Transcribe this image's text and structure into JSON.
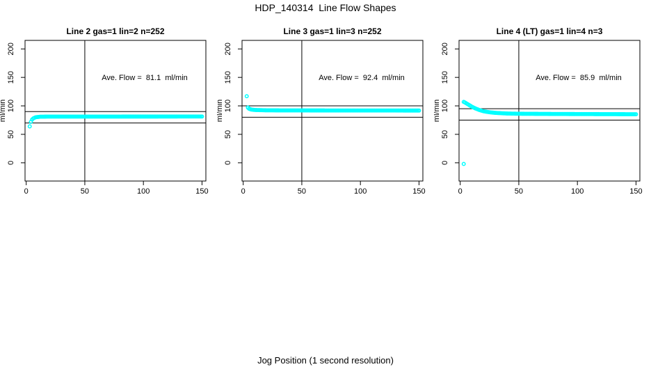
{
  "figure": {
    "title": "HDP_140314  Line Flow Shapes",
    "xlabel": "Jog Position (1 second resolution)",
    "background": "#FFFFFF",
    "point_color": "#00FFFF",
    "axis_color": "#000000"
  },
  "chart_data": [
    {
      "type": "scatter",
      "title": "Line 2 gas=1 lin=2 n=252",
      "annotation": "Ave. Flow =  81.1  ml/min",
      "ave_flow_ml_min": 81.1,
      "ylabel": "ml/min",
      "xticks": [
        0,
        50,
        100,
        150
      ],
      "yticks": [
        0,
        50,
        100,
        150,
        200
      ],
      "xlim": [
        -1,
        153.3
      ],
      "ylim": [
        -32,
        215
      ],
      "ref_lines_y": [
        90,
        70
      ],
      "vline_x": 50,
      "outliers": [
        [
          3,
          64
        ]
      ],
      "curve_anchors": [
        [
          4,
          72
        ],
        [
          5,
          76
        ],
        [
          6,
          78
        ],
        [
          8,
          80
        ],
        [
          12,
          81
        ],
        [
          20,
          81.2
        ],
        [
          150,
          81.3
        ]
      ],
      "x_step": 1,
      "x_end": 150
    },
    {
      "type": "scatter",
      "title": "Line 3 gas=1 lin=3 n=252",
      "annotation": "Ave. Flow =  92.4  ml/min",
      "ave_flow_ml_min": 92.4,
      "ylabel": "ml/min",
      "xticks": [
        0,
        50,
        100,
        150
      ],
      "yticks": [
        0,
        50,
        100,
        150,
        200
      ],
      "xlim": [
        -1,
        153.3
      ],
      "ylim": [
        -32,
        215
      ],
      "ref_lines_y": [
        100,
        80
      ],
      "vline_x": 50,
      "outliers": [
        [
          3,
          117
        ]
      ],
      "curve_anchors": [
        [
          4,
          97
        ],
        [
          5,
          95
        ],
        [
          7,
          93.5
        ],
        [
          10,
          92.8
        ],
        [
          20,
          92.2
        ],
        [
          40,
          92
        ],
        [
          150,
          91.8
        ]
      ],
      "x_step": 1,
      "x_end": 150
    },
    {
      "type": "scatter",
      "title": "Line 4 (LT) gas=1 lin=4 n=3",
      "annotation": "Ave. Flow =  85.9  ml/min",
      "ave_flow_ml_min": 85.9,
      "ylabel": "ml/min",
      "xticks": [
        0,
        50,
        100,
        150
      ],
      "yticks": [
        0,
        50,
        100,
        150,
        200
      ],
      "xlim": [
        -1,
        153.3
      ],
      "ylim": [
        -32,
        215
      ],
      "ref_lines_y": [
        95,
        75
      ],
      "vline_x": 50,
      "outliers": [
        [
          3,
          -2
        ]
      ],
      "curve_anchors": [
        [
          3,
          107
        ],
        [
          4,
          106
        ],
        [
          6,
          103.5
        ],
        [
          8,
          101
        ],
        [
          10,
          98.5
        ],
        [
          13,
          95.5
        ],
        [
          16,
          93
        ],
        [
          20,
          90.5
        ],
        [
          25,
          88.8
        ],
        [
          30,
          87.7
        ],
        [
          40,
          86.6
        ],
        [
          50,
          86.2
        ],
        [
          80,
          85.8
        ],
        [
          150,
          85.3
        ]
      ],
      "x_step": 1,
      "x_end": 150
    }
  ]
}
